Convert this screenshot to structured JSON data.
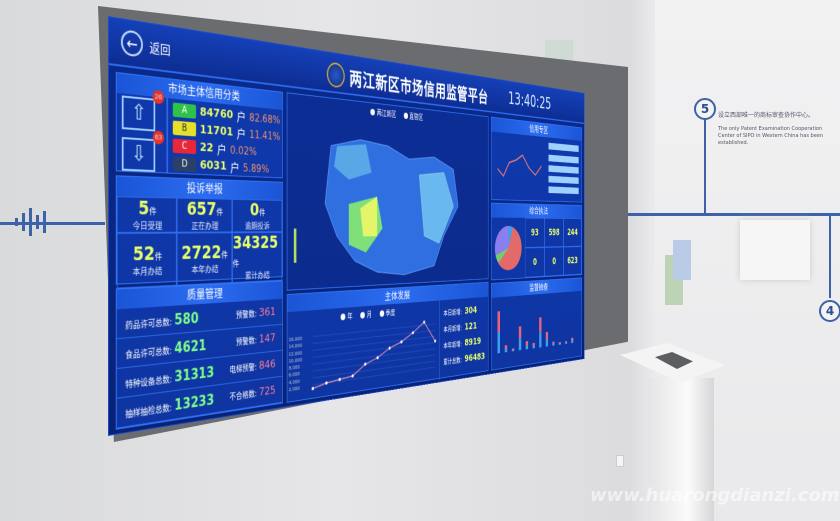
{
  "dashboard": {
    "back_label": "返回",
    "title": "两江新区市场信用监管平台",
    "time": "13:40:25",
    "credit": {
      "title": "市场主体信用分类",
      "upgrade_count": "26",
      "downgrade_count": "63",
      "rows": [
        {
          "grade": "A",
          "count": "84760",
          "unit": "户",
          "pct": "82.68%",
          "color": "#2fc24a"
        },
        {
          "grade": "B",
          "count": "11701",
          "unit": "户",
          "pct": "11.41%",
          "color": "#e6e02a"
        },
        {
          "grade": "C",
          "count": "22",
          "unit": "户",
          "pct": "0.02%",
          "color": "#e8283a"
        },
        {
          "grade": "D",
          "count": "6031",
          "unit": "户",
          "pct": "5.89%",
          "color": "#2c3f66"
        }
      ]
    },
    "complaints": {
      "title": "投诉举报",
      "unit": "件",
      "cells": [
        {
          "value": "5",
          "label": "今日受理"
        },
        {
          "value": "657",
          "label": "正在办理"
        },
        {
          "value": "0",
          "label": "逾期投诉"
        },
        {
          "value": "52",
          "label": "本月办结"
        },
        {
          "value": "2722",
          "label": "本年办结"
        },
        {
          "value": "34325",
          "label": "累计办结"
        }
      ]
    },
    "quality": {
      "title": "质量管理",
      "rows": [
        {
          "label": "药品许可总数:",
          "value": "580",
          "alert_label": "预警数:",
          "alert": "361"
        },
        {
          "label": "食品许可总数:",
          "value": "4621",
          "alert_label": "预警数:",
          "alert": "147"
        },
        {
          "label": "特种设备总数:",
          "value": "31313",
          "alert_label": "电梯预警:",
          "alert": "846"
        },
        {
          "label": "抽样抽检总数:",
          "value": "13233",
          "alert_label": "不合格数:",
          "alert": "725"
        }
      ]
    },
    "map": {
      "legend": [
        "两江新区",
        "直管区"
      ]
    },
    "development": {
      "title": "主体发展",
      "legend": [
        "年",
        "月",
        "季度"
      ],
      "yticks": [
        "16,000",
        "14,000",
        "12,000",
        "10,000",
        "8,000",
        "6,000",
        "4,000",
        "2,000"
      ],
      "stats": [
        {
          "label": "本日新增:",
          "value": "304"
        },
        {
          "label": "本月新增:",
          "value": "121"
        },
        {
          "label": "本年新增:",
          "value": "8919"
        },
        {
          "label": "累计总数:",
          "value": "96483"
        }
      ]
    },
    "credit_zone": {
      "title": "信用专区"
    },
    "enforcement": {
      "title": "综合执法",
      "cells": [
        "93",
        "598",
        "244",
        "0",
        "0",
        "623"
      ]
    },
    "inspection": {
      "title": "监督抽查"
    }
  },
  "chart_data": {
    "type": "line",
    "values": [
      1000,
      2000,
      2500,
      3000,
      6000,
      7500,
      10000,
      11500,
      14000,
      17000,
      10500
    ],
    "ylim": [
      0,
      18000
    ]
  },
  "wall": {
    "step5": "5",
    "step4": "4",
    "caption_cn": "设立西部唯一的商标审查协作中心。",
    "caption_en": "The only Patent Examination Cooperation Center of SIPO in Western China has been established."
  },
  "watermark": "www.huarongdianzi.com"
}
